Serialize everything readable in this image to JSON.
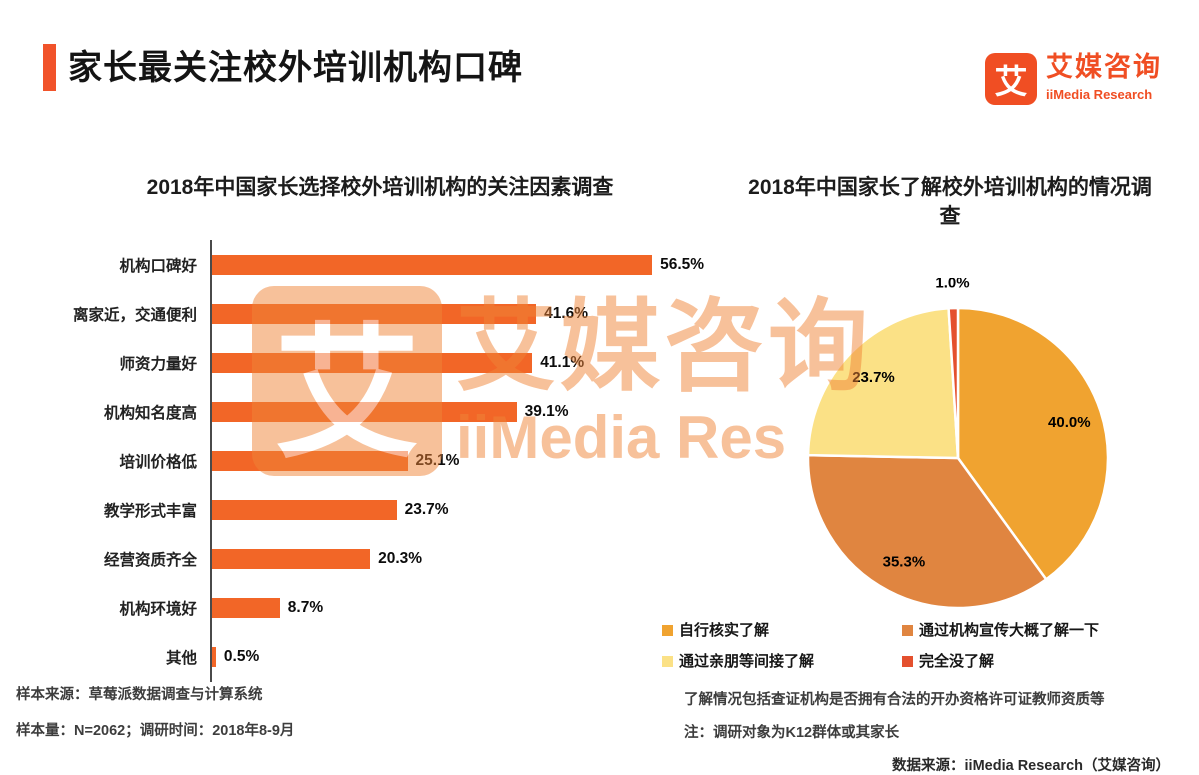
{
  "header": {
    "title": "家长最关注校外培训机构口碑",
    "accent_color": "#F1532A",
    "logo": {
      "mark_char": "艾",
      "brand_cn": "艾媒咨询",
      "brand_en": "iiMedia Research",
      "color": "#F04E23"
    }
  },
  "watermark": {
    "mark_char": "艾",
    "text_cn": "艾媒咨询",
    "text_en": "iiMedia Res",
    "color": "#F08437"
  },
  "chart_data": [
    {
      "type": "bar",
      "orientation": "horizontal",
      "title": "2018年中国家长选择校外培训机构的关注因素调查",
      "categories": [
        "机构口碑好",
        "离家近，交通便利",
        "师资力量好",
        "机构知名度高",
        "培训价格低",
        "教学形式丰富",
        "经营资质齐全",
        "机构环境好",
        "其他"
      ],
      "values": [
        56.5,
        41.6,
        41.1,
        39.1,
        25.1,
        23.7,
        20.3,
        8.7,
        0.5
      ],
      "value_labels": [
        "56.5%",
        "41.6%",
        "41.1%",
        "39.1%",
        "25.1%",
        "23.7%",
        "20.3%",
        "8.7%",
        "0.5%"
      ],
      "value_suffix": "%",
      "xlim": [
        0,
        60
      ],
      "bar_color": "#F26627",
      "grid": false
    },
    {
      "type": "pie",
      "title": "2018年中国家长了解校外培训机构的情况调查",
      "start_angle_deg": 0,
      "direction": "clockwise",
      "legend_position": "bottom",
      "slices": [
        {
          "label": "自行核实了解",
          "value": 40.0,
          "display": "40.0%",
          "color": "#F0A330"
        },
        {
          "label": "通过机构宣传大概了解一下",
          "value": 35.3,
          "display": "35.3%",
          "color": "#E08540"
        },
        {
          "label": "通过亲朋等间接了解",
          "value": 23.7,
          "display": "23.7%",
          "color": "#FBE186"
        },
        {
          "label": "完全没了解",
          "value": 1.0,
          "display": "1.0%",
          "color": "#E4502E"
        }
      ]
    }
  ],
  "footnotes": {
    "left": [
      "样本来源：草莓派数据调查与计算系统",
      "样本量：N=2062；调研时间：2018年8-9月"
    ],
    "right": [
      "了解情况包括查证机构是否拥有合法的开办资格许可证教师资质等",
      "注：调研对象为K12群体或其家长"
    ],
    "source": "数据来源：iiMedia Research（艾媒咨询）"
  }
}
